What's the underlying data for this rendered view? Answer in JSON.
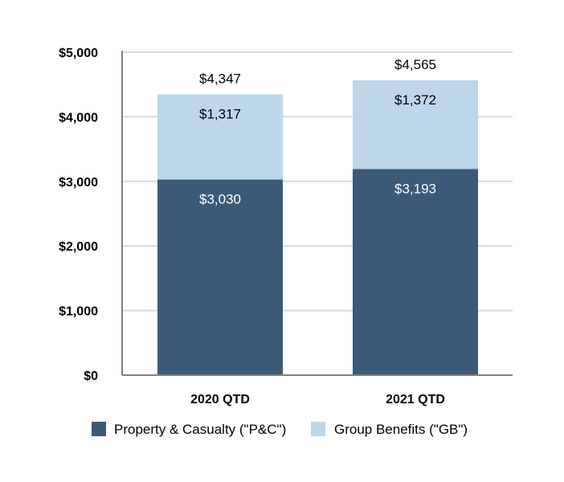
{
  "chart_data": {
    "type": "bar",
    "stacked": true,
    "categories": [
      "2020 QTD",
      "2021 QTD"
    ],
    "series": [
      {
        "name": "Property & Casualty (\"P&C\")",
        "values": [
          3030,
          3193
        ],
        "labels": [
          "$3,030",
          "$3,193"
        ],
        "color": "#3c5a78",
        "label_color": "#ffffff"
      },
      {
        "name": "Group Benefits (\"GB\")",
        "values": [
          1317,
          1372
        ],
        "labels": [
          "$1,317",
          "$1,372"
        ],
        "color": "#bdd7e9",
        "label_color": "#000000"
      }
    ],
    "totals": [
      4347,
      4565
    ],
    "total_labels": [
      "$4,347",
      "$4,565"
    ],
    "ylim": [
      0,
      5000
    ],
    "yticks": [
      0,
      1000,
      2000,
      3000,
      4000,
      5000
    ],
    "ytick_labels": [
      "$0",
      "$1,000",
      "$2,000",
      "$3,000",
      "$4,000",
      "$5,000"
    ],
    "grid": true,
    "grid_color": "#d9d9d9",
    "axis_color": "#808080",
    "legend_position": "bottom",
    "title": "",
    "xlabel": "",
    "ylabel": ""
  }
}
